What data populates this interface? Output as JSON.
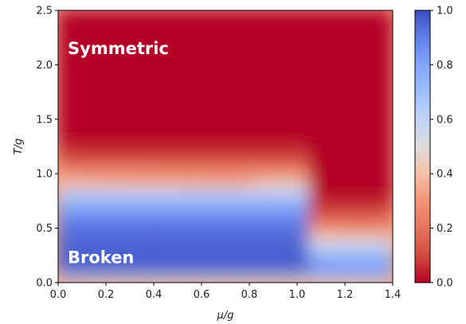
{
  "chart_data": {
    "type": "heatmap",
    "title": "",
    "xlabel": "μ/g",
    "ylabel": "T/g",
    "xlim": [
      0.0,
      1.4
    ],
    "ylim": [
      0.0,
      2.5
    ],
    "x_ticks": [
      "0.0",
      "0.2",
      "0.4",
      "0.6",
      "0.8",
      "1.0",
      "1.2",
      "1.4"
    ],
    "y_ticks": [
      "0.0",
      "0.5",
      "1.0",
      "1.5",
      "2.0",
      "2.5"
    ],
    "colormap": "coolwarm_r",
    "colorbar": {
      "range": [
        0.0,
        1.0
      ],
      "ticks": [
        "0.0",
        "0.2",
        "0.4",
        "0.6",
        "0.8",
        "1.0"
      ],
      "high_color": "#3b4cc0",
      "mid_color": "#dddddd",
      "low_color": "#b40426"
    },
    "annotations": [
      {
        "text": "Symmetric",
        "x": 0.03,
        "y": 2.15
      },
      {
        "text": "Broken",
        "x": 0.03,
        "y": 0.23
      }
    ],
    "grid": false
  }
}
